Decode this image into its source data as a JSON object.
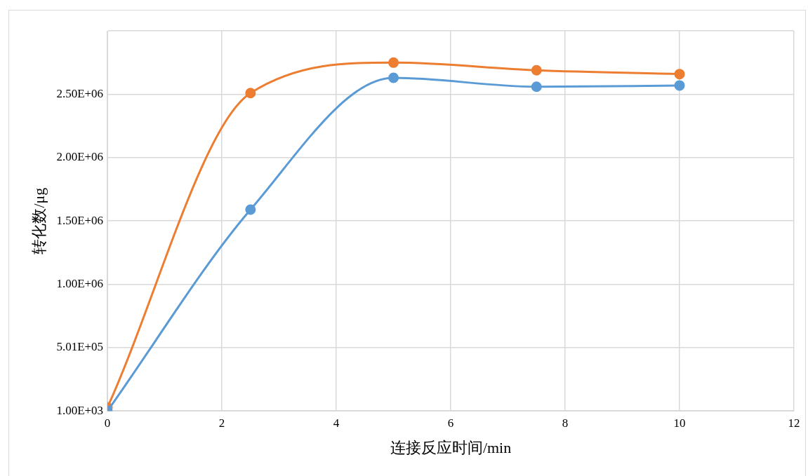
{
  "chart_data": {
    "type": "line",
    "xlabel": "连接反应时间/min",
    "ylabel": "转化数/μg",
    "x": [
      0,
      2.5,
      5,
      7.5,
      10
    ],
    "series": [
      {
        "color": "#5b9bd5",
        "values": [
          1000,
          1590000,
          2630000,
          2560000,
          2570000
        ]
      },
      {
        "color": "#ed7d31",
        "values": [
          30000,
          2510000,
          2750000,
          2690000,
          2660000
        ]
      }
    ],
    "xlim": [
      0,
      12
    ],
    "xticks": [
      0,
      2,
      4,
      6,
      8,
      10,
      12
    ],
    "ylim": [
      1000,
      3001000
    ],
    "yticks": [
      {
        "value": 1000,
        "label": "1.00E+03"
      },
      {
        "value": 501000,
        "label": "5.01E+05"
      },
      {
        "value": 1001000,
        "label": "1.00E+06"
      },
      {
        "value": 1501000,
        "label": "1.50E+06"
      },
      {
        "value": 2001000,
        "label": "2.00E+06"
      },
      {
        "value": 2501000,
        "label": "2.50E+06"
      },
      {
        "value": 3001000,
        "label": null
      }
    ],
    "grid": true,
    "legend": false,
    "marker": "circle",
    "line_style": "solid"
  }
}
